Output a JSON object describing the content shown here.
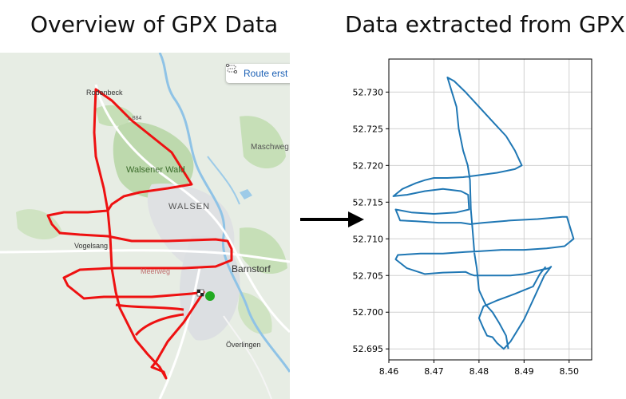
{
  "titles": {
    "left": "Overview of GPX Data",
    "right": "Data extracted from GPX"
  },
  "map": {
    "route_button": "Route erst",
    "labels": {
      "rodenbeck": "Rodenbeck",
      "road": "L 884",
      "walsener_wald": "Walsener Wald",
      "walsen": "WALSEN",
      "maschweg": "Maschweg",
      "vogelsang": "Vogelsang",
      "meerweg": "Meerweg",
      "barnstorf": "Barnstorf",
      "overlingen": "Överlingen"
    },
    "colors": {
      "route": "#ee1111",
      "start": "#22aa22",
      "forest": "#b9d7a8",
      "water": "#8fc3e6"
    }
  },
  "chart_data": {
    "type": "line",
    "title": "",
    "xlabel": "",
    "ylabel": "",
    "xlim": [
      8.46,
      8.505
    ],
    "ylim": [
      52.6935,
      52.7345
    ],
    "x_ticks": [
      "8.46",
      "8.47",
      "8.48",
      "8.49",
      "8.50"
    ],
    "y_ticks": [
      "52.695",
      "52.700",
      "52.705",
      "52.710",
      "52.715",
      "52.720",
      "52.725",
      "52.730"
    ],
    "grid": true,
    "color": "#1f77b4",
    "series": [
      {
        "points": [
          [
            8.4865,
            52.695
          ],
          [
            8.486,
            52.6968
          ],
          [
            8.4845,
            52.6985
          ],
          [
            8.483,
            52.7
          ],
          [
            8.4815,
            52.701
          ],
          [
            8.48,
            52.703
          ],
          [
            8.4795,
            52.706
          ],
          [
            8.479,
            52.708
          ],
          [
            8.4786,
            52.711
          ],
          [
            8.4782,
            52.714
          ],
          [
            8.478,
            52.718
          ],
          [
            8.4775,
            52.72
          ],
          [
            8.4765,
            52.722
          ],
          [
            8.4755,
            52.725
          ],
          [
            8.475,
            52.728
          ],
          [
            8.474,
            52.73
          ],
          [
            8.473,
            52.732
          ],
          [
            8.4745,
            52.7315
          ],
          [
            8.477,
            52.73
          ],
          [
            8.48,
            52.728
          ],
          [
            8.483,
            52.726
          ],
          [
            8.486,
            52.724
          ],
          [
            8.488,
            52.722
          ],
          [
            8.4895,
            52.72
          ],
          [
            8.488,
            52.7195
          ],
          [
            8.484,
            52.719
          ],
          [
            8.479,
            52.7186
          ],
          [
            8.4765,
            52.7184
          ],
          [
            8.473,
            52.7183
          ],
          [
            8.47,
            52.7183
          ],
          [
            8.468,
            52.718
          ],
          [
            8.466,
            52.7176
          ],
          [
            8.463,
            52.7168
          ],
          [
            8.461,
            52.7158
          ],
          [
            8.464,
            52.716
          ],
          [
            8.468,
            52.7165
          ],
          [
            8.472,
            52.7168
          ],
          [
            8.476,
            52.7165
          ],
          [
            8.4776,
            52.716
          ],
          [
            8.4778,
            52.714
          ],
          [
            8.475,
            52.7136
          ],
          [
            8.47,
            52.7134
          ],
          [
            8.465,
            52.7136
          ],
          [
            8.4615,
            52.714
          ],
          [
            8.4625,
            52.7125
          ],
          [
            8.466,
            52.7124
          ],
          [
            8.471,
            52.7122
          ],
          [
            8.476,
            52.7122
          ],
          [
            8.478,
            52.712
          ],
          [
            8.481,
            52.7122
          ],
          [
            8.487,
            52.7125
          ],
          [
            8.493,
            52.7127
          ],
          [
            8.4985,
            52.713
          ],
          [
            8.4995,
            52.713
          ],
          [
            8.5,
            52.712
          ],
          [
            8.501,
            52.71
          ],
          [
            8.499,
            52.709
          ],
          [
            8.495,
            52.7087
          ],
          [
            8.49,
            52.7085
          ],
          [
            8.485,
            52.7085
          ],
          [
            8.48,
            52.7083
          ],
          [
            8.477,
            52.7082
          ],
          [
            8.472,
            52.708
          ],
          [
            8.467,
            52.708
          ],
          [
            8.462,
            52.7078
          ],
          [
            8.4615,
            52.7072
          ],
          [
            8.464,
            52.706
          ],
          [
            8.468,
            52.7052
          ],
          [
            8.472,
            52.7054
          ],
          [
            8.477,
            52.7055
          ],
          [
            8.478,
            52.7052
          ],
          [
            8.479,
            52.705
          ],
          [
            8.483,
            52.705
          ],
          [
            8.487,
            52.705
          ],
          [
            8.49,
            52.7052
          ],
          [
            8.492,
            52.7055
          ],
          [
            8.494,
            52.7058
          ],
          [
            8.4955,
            52.706
          ],
          [
            8.496,
            52.7062
          ],
          [
            8.4945,
            52.705
          ],
          [
            8.493,
            52.703
          ],
          [
            8.4915,
            52.701
          ],
          [
            8.49,
            52.699
          ],
          [
            8.4885,
            52.6975
          ],
          [
            8.487,
            52.696
          ],
          [
            8.4855,
            52.695
          ],
          [
            8.484,
            52.6958
          ],
          [
            8.483,
            52.6966
          ],
          [
            8.4818,
            52.6968
          ],
          [
            8.481,
            52.6978
          ],
          [
            8.48,
            52.6992
          ],
          [
            8.481,
            52.7008
          ],
          [
            8.484,
            52.7016
          ],
          [
            8.488,
            52.7025
          ],
          [
            8.49,
            52.703
          ],
          [
            8.492,
            52.7035
          ],
          [
            8.4935,
            52.7052
          ],
          [
            8.4948,
            52.7062
          ]
        ]
      }
    ]
  }
}
